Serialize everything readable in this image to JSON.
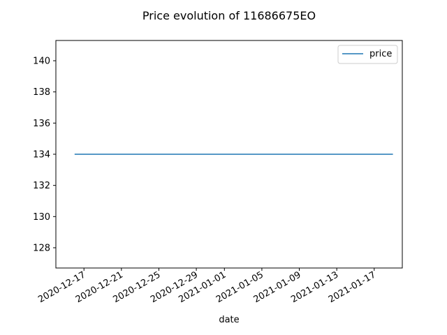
{
  "chart_data": {
    "type": "line",
    "title": "Price evolution of 11686675EO",
    "xlabel": "date",
    "ylabel": "",
    "x_type": "date",
    "xlim": [
      "2020-12-14",
      "2021-01-20"
    ],
    "ylim": [
      126.7,
      141.3
    ],
    "y_ticks": [
      128,
      130,
      132,
      134,
      136,
      138,
      140
    ],
    "x_ticks": [
      "2020-12-17",
      "2020-12-21",
      "2020-12-25",
      "2020-12-29",
      "2021-01-01",
      "2021-01-05",
      "2021-01-09",
      "2021-01-13",
      "2021-01-17"
    ],
    "legend": {
      "position": "top-right",
      "entries": [
        "price"
      ]
    },
    "grid": false,
    "series": [
      {
        "name": "price",
        "color": "#1f77b4",
        "x": [
          "2020-12-16",
          "2021-01-19"
        ],
        "y": [
          134,
          134
        ]
      }
    ]
  }
}
